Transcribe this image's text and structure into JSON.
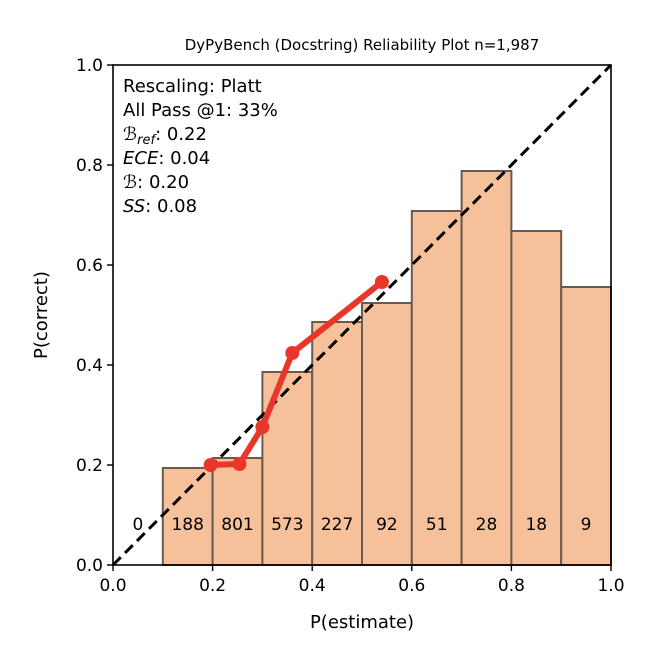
{
  "chart_data": {
    "type": "bar",
    "title": "DyPyBench (Docstring) Reliability Plot n=1,987",
    "xlabel": "P(estimate)",
    "ylabel": "P(correct)",
    "xlim": [
      0,
      1
    ],
    "ylim": [
      0,
      1
    ],
    "grid": false,
    "xticks": [
      "0.0",
      "0.2",
      "0.4",
      "0.6",
      "0.8",
      "1.0"
    ],
    "yticks": [
      "0.0",
      "0.2",
      "0.4",
      "0.6",
      "0.8",
      "1.0"
    ],
    "bins": [
      0,
      0.1,
      0.2,
      0.3,
      0.4,
      0.5,
      0.6,
      0.7,
      0.8,
      0.9,
      1.0
    ],
    "bar_values": [
      0,
      0.194,
      0.214,
      0.386,
      0.486,
      0.524,
      0.708,
      0.788,
      0.668,
      0.556
    ],
    "bin_counts": [
      "0",
      "188",
      "801",
      "573",
      "227",
      "92",
      "51",
      "28",
      "18",
      "9"
    ],
    "calibration_line": {
      "x": [
        0.196,
        0.254,
        0.3,
        0.36,
        0.54
      ],
      "y": [
        0.2,
        0.202,
        0.276,
        0.424,
        0.566
      ]
    },
    "diagonal": {
      "x": [
        0,
        1
      ],
      "y": [
        0,
        1
      ],
      "style": "dashed"
    },
    "annotations": [
      {
        "label": "Rescaling: Platt"
      },
      {
        "label": "All Pass @1: 33%"
      },
      {
        "sym": "ℬ",
        "sub": "ref",
        "value": ": 0.22"
      },
      {
        "sym": "ECE",
        "sub": "",
        "value": ": 0.04"
      },
      {
        "sym": "ℬ",
        "sub": "",
        "value": ": 0.20"
      },
      {
        "sym": "SS",
        "sub": "",
        "value": ": 0.08"
      }
    ],
    "colors": {
      "bar_fill": "#f5c09a",
      "bar_edge": "#6b5a4e",
      "line": "#e8372a",
      "diagonal": "#000000"
    }
  }
}
